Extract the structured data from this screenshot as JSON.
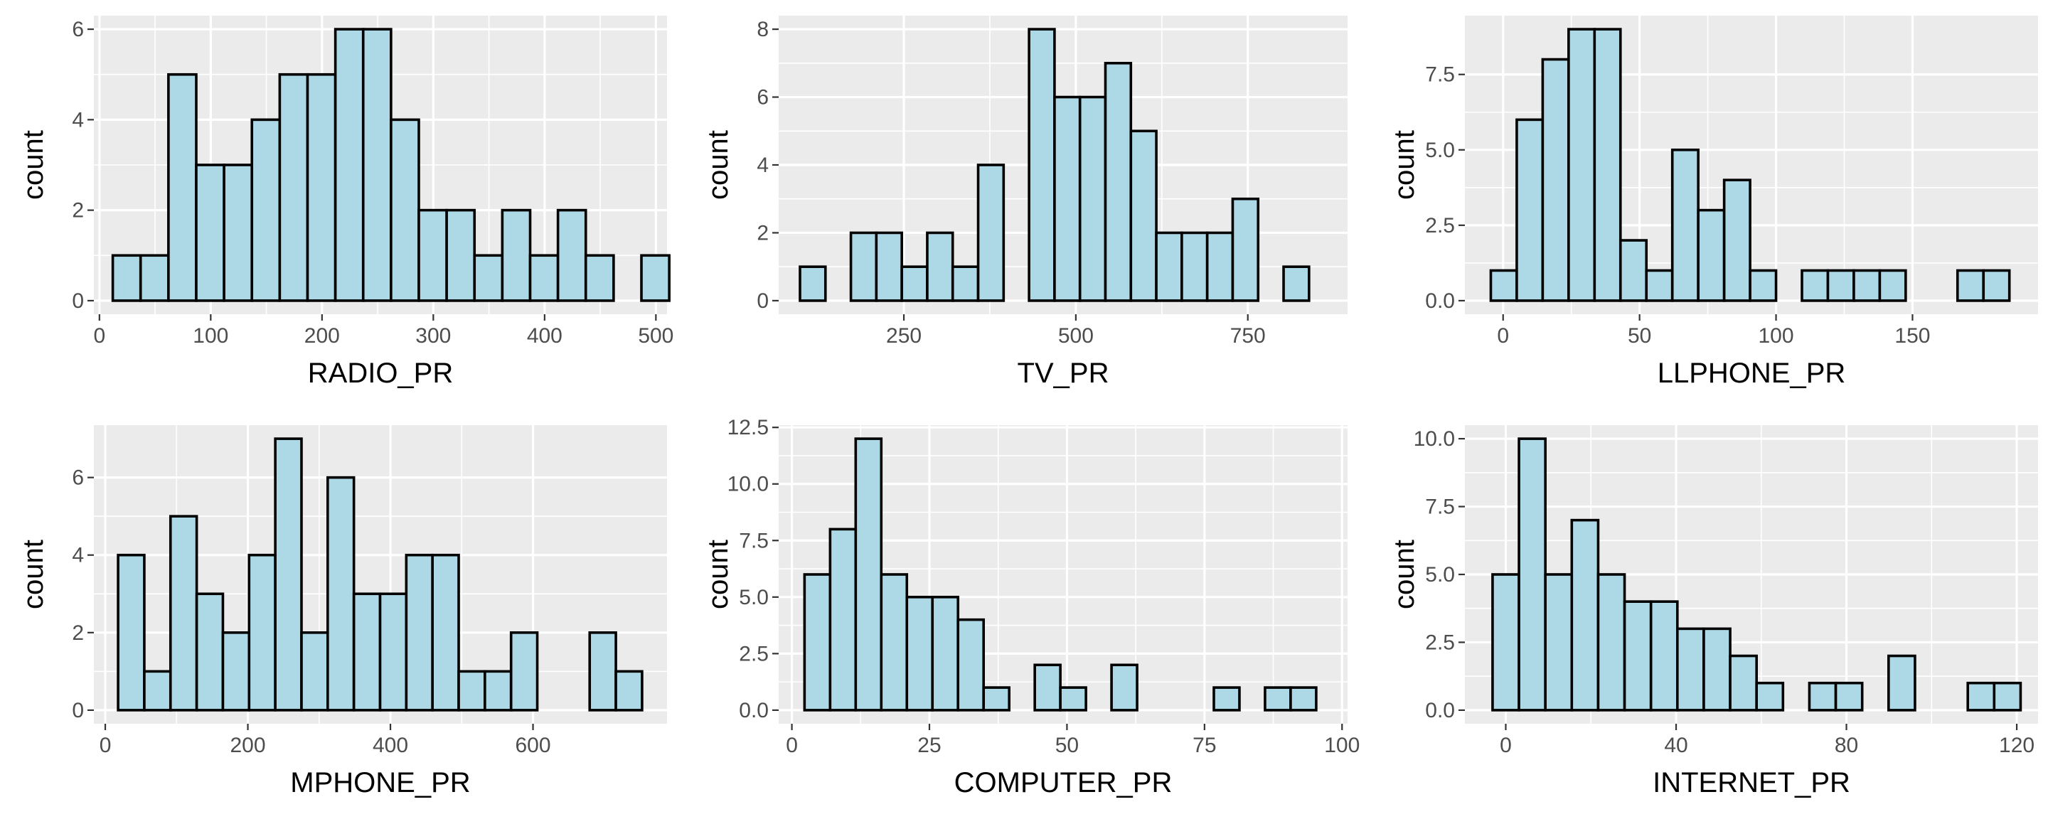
{
  "chart_data": [
    {
      "type": "bar",
      "subtype": "histogram",
      "xlabel": "RADIO_PR",
      "ylabel": "count",
      "bin_width": 25,
      "first_bin_left": 12,
      "counts": [
        1,
        1,
        5,
        3,
        3,
        4,
        5,
        5,
        6,
        6,
        4,
        2,
        2,
        1,
        2,
        1,
        2,
        1,
        0,
        1
      ],
      "xlim": [
        -5,
        510
      ],
      "ylim": [
        -0.3,
        6.3
      ],
      "xticks": [
        0,
        100,
        200,
        300,
        400,
        500
      ],
      "xtick_labels": [
        "0",
        "100",
        "200",
        "300",
        "400",
        "500"
      ],
      "yticks": [
        0,
        2,
        4,
        6
      ],
      "ytick_labels": [
        "0",
        "2",
        "4",
        "6"
      ],
      "grid": true
    },
    {
      "type": "bar",
      "subtype": "histogram",
      "xlabel": "TV_PR",
      "ylabel": "count",
      "bin_width": 37,
      "first_bin_left": 99,
      "counts": [
        1,
        0,
        2,
        2,
        1,
        2,
        1,
        4,
        0,
        8,
        6,
        6,
        7,
        5,
        2,
        2,
        2,
        3,
        0,
        1
      ],
      "xlim": [
        68,
        895
      ],
      "ylim": [
        -0.4,
        8.4
      ],
      "xticks": [
        250,
        500,
        750
      ],
      "xtick_labels": [
        "250",
        "500",
        "750"
      ],
      "yticks": [
        0,
        2,
        4,
        6,
        8
      ],
      "ytick_labels": [
        "0",
        "2",
        "4",
        "6",
        "8"
      ],
      "grid": true
    },
    {
      "type": "bar",
      "subtype": "histogram",
      "xlabel": "LLPHONE_PR",
      "ylabel": "count",
      "bin_width": 9.5,
      "first_bin_left": -4.5,
      "counts": [
        1,
        6,
        8,
        9,
        9,
        2,
        1,
        5,
        3,
        4,
        1,
        0,
        1,
        1,
        1,
        1,
        0,
        0,
        1,
        1
      ],
      "xlim": [
        -14,
        196
      ],
      "ylim": [
        -0.45,
        9.45
      ],
      "xticks": [
        0,
        50,
        100,
        150
      ],
      "xtick_labels": [
        "0",
        "50",
        "100",
        "150"
      ],
      "yticks": [
        0,
        2.5,
        5,
        7.5
      ],
      "ytick_labels": [
        "0.0",
        "2.5",
        "5.0",
        "7.5"
      ],
      "grid": true
    },
    {
      "type": "bar",
      "subtype": "histogram",
      "xlabel": "MPHONE_PR",
      "ylabel": "count",
      "bin_width": 36.75,
      "first_bin_left": 18,
      "counts": [
        4,
        1,
        5,
        3,
        2,
        4,
        7,
        2,
        6,
        3,
        3,
        4,
        4,
        1,
        1,
        2,
        0,
        0,
        2,
        1
      ],
      "xlim": [
        -16,
        788
      ],
      "ylim": [
        -0.35,
        7.35
      ],
      "xticks": [
        0,
        200,
        400,
        600
      ],
      "xtick_labels": [
        "0",
        "200",
        "400",
        "600"
      ],
      "yticks": [
        0,
        2,
        4,
        6
      ],
      "ytick_labels": [
        "0",
        "2",
        "4",
        "6"
      ],
      "grid": true
    },
    {
      "type": "bar",
      "subtype": "histogram",
      "xlabel": "COMPUTER_PR",
      "ylabel": "count",
      "bin_width": 4.65,
      "first_bin_left": 2.3,
      "counts": [
        6,
        8,
        12,
        6,
        5,
        5,
        4,
        1,
        0,
        2,
        1,
        0,
        2,
        0,
        0,
        0,
        1,
        0,
        1,
        1
      ],
      "xlim": [
        -2.4,
        101
      ],
      "ylim": [
        -0.6,
        12.6
      ],
      "xticks": [
        0,
        25,
        50,
        75,
        100
      ],
      "xtick_labels": [
        "0",
        "25",
        "50",
        "75",
        "100"
      ],
      "yticks": [
        0,
        2.5,
        5,
        7.5,
        10,
        12.5
      ],
      "ytick_labels": [
        "0.0",
        "2.5",
        "5.0",
        "7.5",
        "10.0",
        "12.5"
      ],
      "grid": true
    },
    {
      "type": "bar",
      "subtype": "histogram",
      "xlabel": "INTERNET_PR",
      "ylabel": "count",
      "bin_width": 6.2,
      "first_bin_left": -3.1,
      "counts": [
        5,
        10,
        5,
        7,
        5,
        4,
        4,
        3,
        3,
        2,
        1,
        0,
        1,
        1,
        0,
        2,
        0,
        0,
        1,
        1
      ],
      "xlim": [
        -9.6,
        125
      ],
      "ylim": [
        -0.5,
        10.5
      ],
      "xticks": [
        0,
        40,
        80,
        120
      ],
      "xtick_labels": [
        "0",
        "40",
        "80",
        "120"
      ],
      "yticks": [
        0,
        2.5,
        5,
        7.5,
        10
      ],
      "ytick_labels": [
        "0.0",
        "2.5",
        "5.0",
        "7.5",
        "10.0"
      ],
      "grid": true
    }
  ],
  "colors": {
    "panel_background": "#ebebeb",
    "grid": "#ffffff",
    "bar_fill": "#add8e6",
    "bar_outline": "#000000",
    "tick_label": "#4d4d4d",
    "axis_title": "#000000"
  }
}
